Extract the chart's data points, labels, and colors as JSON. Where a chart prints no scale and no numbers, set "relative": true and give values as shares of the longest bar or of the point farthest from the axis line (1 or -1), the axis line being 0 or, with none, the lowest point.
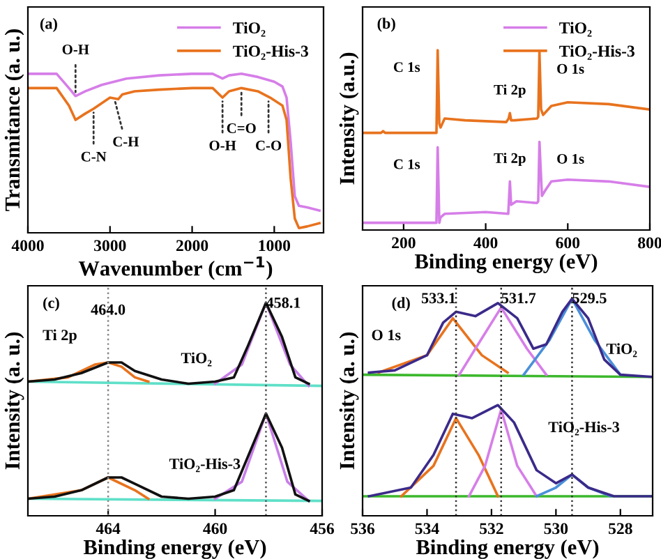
{
  "chart_data": [
    {
      "type": "line",
      "relative": true,
      "xlabel": "Wavenumber (cm$^{−1}$)",
      "ylabel": "Transmitance (a. u.)",
      "xlim": [
        4000,
        400
      ],
      "xticks": [
        4000,
        3000,
        2000,
        1000
      ],
      "legend": "top right",
      "grid": false,
      "series": [
        {
          "name": "TiO₂",
          "color": "#d67ee8",
          "x": [
            4000,
            3650,
            3500,
            3420,
            3300,
            3100,
            2800,
            2400,
            2000,
            1750,
            1630,
            1550,
            1400,
            1200,
            1000,
            900,
            850,
            800,
            750,
            700,
            600,
            450
          ],
          "values": [
            1.0,
            1.0,
            0.91,
            0.86,
            0.89,
            0.93,
            0.97,
            0.99,
            1.0,
            1.0,
            0.97,
            0.99,
            1.0,
            0.98,
            0.95,
            0.92,
            0.85,
            0.57,
            0.23,
            0.17,
            0.16,
            0.14
          ]
        },
        {
          "name": "TiO₂-His-3",
          "color": "#e8731e",
          "x": [
            4000,
            3650,
            3500,
            3420,
            3300,
            3200,
            3000,
            2900,
            2850,
            2700,
            2400,
            2000,
            1750,
            1630,
            1550,
            1400,
            1200,
            1050,
            900,
            850,
            800,
            750,
            700,
            600,
            450
          ],
          "values": [
            0.91,
            0.91,
            0.8,
            0.71,
            0.75,
            0.78,
            0.85,
            0.84,
            0.87,
            0.89,
            0.9,
            0.91,
            0.91,
            0.85,
            0.89,
            0.91,
            0.89,
            0.85,
            0.8,
            0.71,
            0.34,
            0.09,
            0.03,
            0.04,
            0.06
          ]
        }
      ],
      "annotations": [
        "(a)",
        {
          "text": "O-H",
          "x": 3420,
          "y": 0.86
        },
        {
          "text": "C-N",
          "x": 3200,
          "y": 0.78
        },
        {
          "text": "C-H",
          "x": 2950,
          "y": 0.85
        },
        {
          "text": "O-H",
          "x": 1630,
          "y": 0.85
        },
        {
          "text": "C=O",
          "x": 1400,
          "y": 0.91
        },
        {
          "text": "C-O",
          "x": 1070,
          "y": 0.85
        }
      ]
    },
    {
      "type": "line",
      "relative": true,
      "xlabel": "Binding energy (eV)",
      "ylabel": "Intensity (a.u.)",
      "xlim": [
        100,
        800
      ],
      "xticks": [
        200,
        400,
        600,
        800
      ],
      "legend": "top right",
      "grid": false,
      "series": [
        {
          "name": "TiO₂",
          "color": "#d67ee8",
          "x": [
            100,
            270,
            280,
            283,
            287,
            290,
            300,
            400,
            455,
            459,
            462,
            475,
            525,
            528,
            531,
            537,
            545,
            560,
            600,
            700,
            800
          ],
          "values": [
            0.04,
            0.04,
            0.04,
            0.46,
            0.04,
            0.07,
            0.09,
            0.1,
            0.09,
            0.27,
            0.14,
            0.16,
            0.15,
            0.16,
            0.49,
            0.19,
            0.22,
            0.27,
            0.28,
            0.27,
            0.24
          ]
        },
        {
          "name": "TiO₂-His-3",
          "color": "#e8731e",
          "x": [
            100,
            145,
            150,
            155,
            270,
            280,
            283,
            287,
            290,
            300,
            350,
            450,
            456,
            459,
            462,
            470,
            525,
            528,
            531,
            535,
            540,
            560,
            600,
            700,
            800
          ],
          "values": [
            0.54,
            0.54,
            0.55,
            0.54,
            0.54,
            0.54,
            1.0,
            0.59,
            0.57,
            0.62,
            0.61,
            0.6,
            0.62,
            0.65,
            0.61,
            0.61,
            0.62,
            0.63,
            0.99,
            0.67,
            0.64,
            0.69,
            0.71,
            0.7,
            0.67
          ]
        }
      ],
      "annotations": [
        "(b)",
        {
          "text": "C 1s",
          "x": 283,
          "y": 1.0
        },
        {
          "text": "Ti 2p",
          "x": 459,
          "y": 0.65
        },
        {
          "text": "O 1s",
          "x": 531,
          "y": 0.99
        },
        {
          "text": "C 1s",
          "x": 283,
          "y": 0.46
        },
        {
          "text": "Ti 2p",
          "x": 459,
          "y": 0.27
        },
        {
          "text": "O 1s",
          "x": 531,
          "y": 0.49
        }
      ]
    },
    {
      "type": "line",
      "relative": true,
      "xlabel": "Binding energy (eV)",
      "ylabel": "Intensity (a. u.)",
      "xlim": [
        467,
        456
      ],
      "xticks": [
        464,
        460,
        456
      ],
      "grid": false,
      "series": [
        {
          "color": "#5fe0c8",
          "x": [
            467,
            456
          ],
          "values": [
            0.63,
            0.61
          ]
        },
        {
          "color": "#e8731e",
          "x": [
            467,
            465.5,
            464.5,
            464,
            463.5,
            463,
            462.5
          ],
          "values": [
            0.63,
            0.65,
            0.71,
            0.72,
            0.7,
            0.65,
            0.63
          ]
        },
        {
          "color": "#c77ee8",
          "x": [
            460,
            459,
            458.1,
            457.2,
            456.5
          ],
          "values": [
            0.62,
            0.71,
            1.0,
            0.71,
            0.61
          ]
        },
        {
          "color": "#111111",
          "x": [
            467,
            466,
            465,
            464,
            463.5,
            463,
            462,
            461,
            460,
            459.3,
            458.8,
            458.1,
            457.5,
            457,
            456.5
          ],
          "values": [
            0.63,
            0.64,
            0.67,
            0.72,
            0.72,
            0.68,
            0.64,
            0.62,
            0.63,
            0.65,
            0.79,
            1.0,
            0.84,
            0.65,
            0.62
          ]
        },
        {
          "color": "#5fe0c8",
          "x": [
            467,
            456
          ],
          "values": [
            0.08,
            0.07
          ]
        },
        {
          "color": "#e8731e",
          "x": [
            467,
            465,
            464,
            463,
            462.5
          ],
          "values": [
            0.08,
            0.12,
            0.18,
            0.12,
            0.08
          ]
        },
        {
          "color": "#c77ee8",
          "x": [
            460,
            459,
            458.1,
            457.3,
            456.5
          ],
          "values": [
            0.08,
            0.16,
            0.48,
            0.16,
            0.07
          ]
        },
        {
          "color": "#111111",
          "x": [
            467,
            466,
            465,
            464,
            463.5,
            463,
            462,
            461,
            460,
            459.3,
            458.8,
            458.1,
            457.5,
            457,
            456.5
          ],
          "values": [
            0.08,
            0.09,
            0.12,
            0.18,
            0.18,
            0.15,
            0.09,
            0.08,
            0.09,
            0.12,
            0.27,
            0.48,
            0.32,
            0.1,
            0.07
          ]
        }
      ],
      "ref_lines": [
        {
          "axis": "x",
          "value": 464.0,
          "label": "464.0",
          "color": "#888888",
          "line_style": "dotted"
        },
        {
          "axis": "x",
          "value": 458.1,
          "label": "458.1",
          "color": "#555555",
          "line_style": "dotted"
        }
      ],
      "annotations": [
        "(c)",
        "Ti 2p",
        "TiO₂",
        "TiO₂-His-3"
      ]
    },
    {
      "type": "line",
      "relative": true,
      "xlabel": "Binding energy (eV)",
      "ylabel": "Intensity (a. u.)",
      "xlim": [
        536,
        527
      ],
      "xticks": [
        536,
        534,
        532,
        530,
        528
      ],
      "grid": false,
      "series": [
        {
          "color": "#3cb82c",
          "x": [
            536,
            527
          ],
          "values": [
            0.65,
            0.64
          ]
        },
        {
          "color": "#e8731e",
          "x": [
            535.5,
            534,
            533.2,
            532.3,
            531.5
          ],
          "values": [
            0.66,
            0.74,
            0.91,
            0.74,
            0.66
          ]
        },
        {
          "color": "#d67ee8",
          "x": [
            533,
            532.5,
            531.7,
            530.9,
            530.3
          ],
          "values": [
            0.65,
            0.77,
            0.96,
            0.77,
            0.65
          ]
        },
        {
          "color": "#4a90d9",
          "x": [
            531,
            530.2,
            529.5,
            528.8,
            528
          ],
          "values": [
            0.65,
            0.81,
            1.0,
            0.81,
            0.65
          ]
        },
        {
          "color": "#3b2a8a",
          "x": [
            535.8,
            535,
            534,
            533.5,
            533.1,
            532.5,
            531.8,
            531.2,
            530.7,
            530.3,
            529.8,
            529.5,
            529,
            528.5,
            528,
            527
          ],
          "values": [
            0.66,
            0.67,
            0.74,
            0.89,
            0.94,
            0.92,
            0.98,
            0.91,
            0.77,
            0.79,
            0.94,
            1.0,
            0.91,
            0.72,
            0.65,
            0.64
          ]
        },
        {
          "color": "#3cb82c",
          "x": [
            536,
            527
          ],
          "values": [
            0.09,
            0.09
          ]
        },
        {
          "color": "#e8731e",
          "x": [
            534.8,
            533.8,
            533.1,
            532.4,
            531.8
          ],
          "values": [
            0.09,
            0.23,
            0.45,
            0.28,
            0.09
          ]
        },
        {
          "color": "#d67ee8",
          "x": [
            532.7,
            532.2,
            531.7,
            531.2,
            530.6
          ],
          "values": [
            0.09,
            0.23,
            0.49,
            0.23,
            0.09
          ]
        },
        {
          "color": "#4a90d9",
          "x": [
            530.6,
            530,
            529.5,
            529,
            528.3
          ],
          "values": [
            0.09,
            0.13,
            0.19,
            0.13,
            0.09
          ]
        },
        {
          "color": "#3b2a8a",
          "x": [
            535.8,
            534.5,
            533.8,
            533.2,
            532.6,
            531.8,
            531.3,
            530.6,
            530,
            529.5,
            529,
            528.2,
            527
          ],
          "values": [
            0.09,
            0.13,
            0.28,
            0.47,
            0.45,
            0.51,
            0.43,
            0.21,
            0.15,
            0.19,
            0.13,
            0.09,
            0.09
          ]
        }
      ],
      "ref_lines": [
        {
          "axis": "x",
          "value": 533.1,
          "label": "533.1",
          "color": "#333333",
          "line_style": "dotted"
        },
        {
          "axis": "x",
          "value": 531.7,
          "label": "531.7",
          "color": "#333333",
          "line_style": "dotted"
        },
        {
          "axis": "x",
          "value": 529.5,
          "label": "529.5",
          "color": "#333333",
          "line_style": "dotted"
        }
      ],
      "annotations": [
        "(d)",
        "O 1s",
        "TiO₂",
        "TiO₂-His-3"
      ]
    }
  ]
}
